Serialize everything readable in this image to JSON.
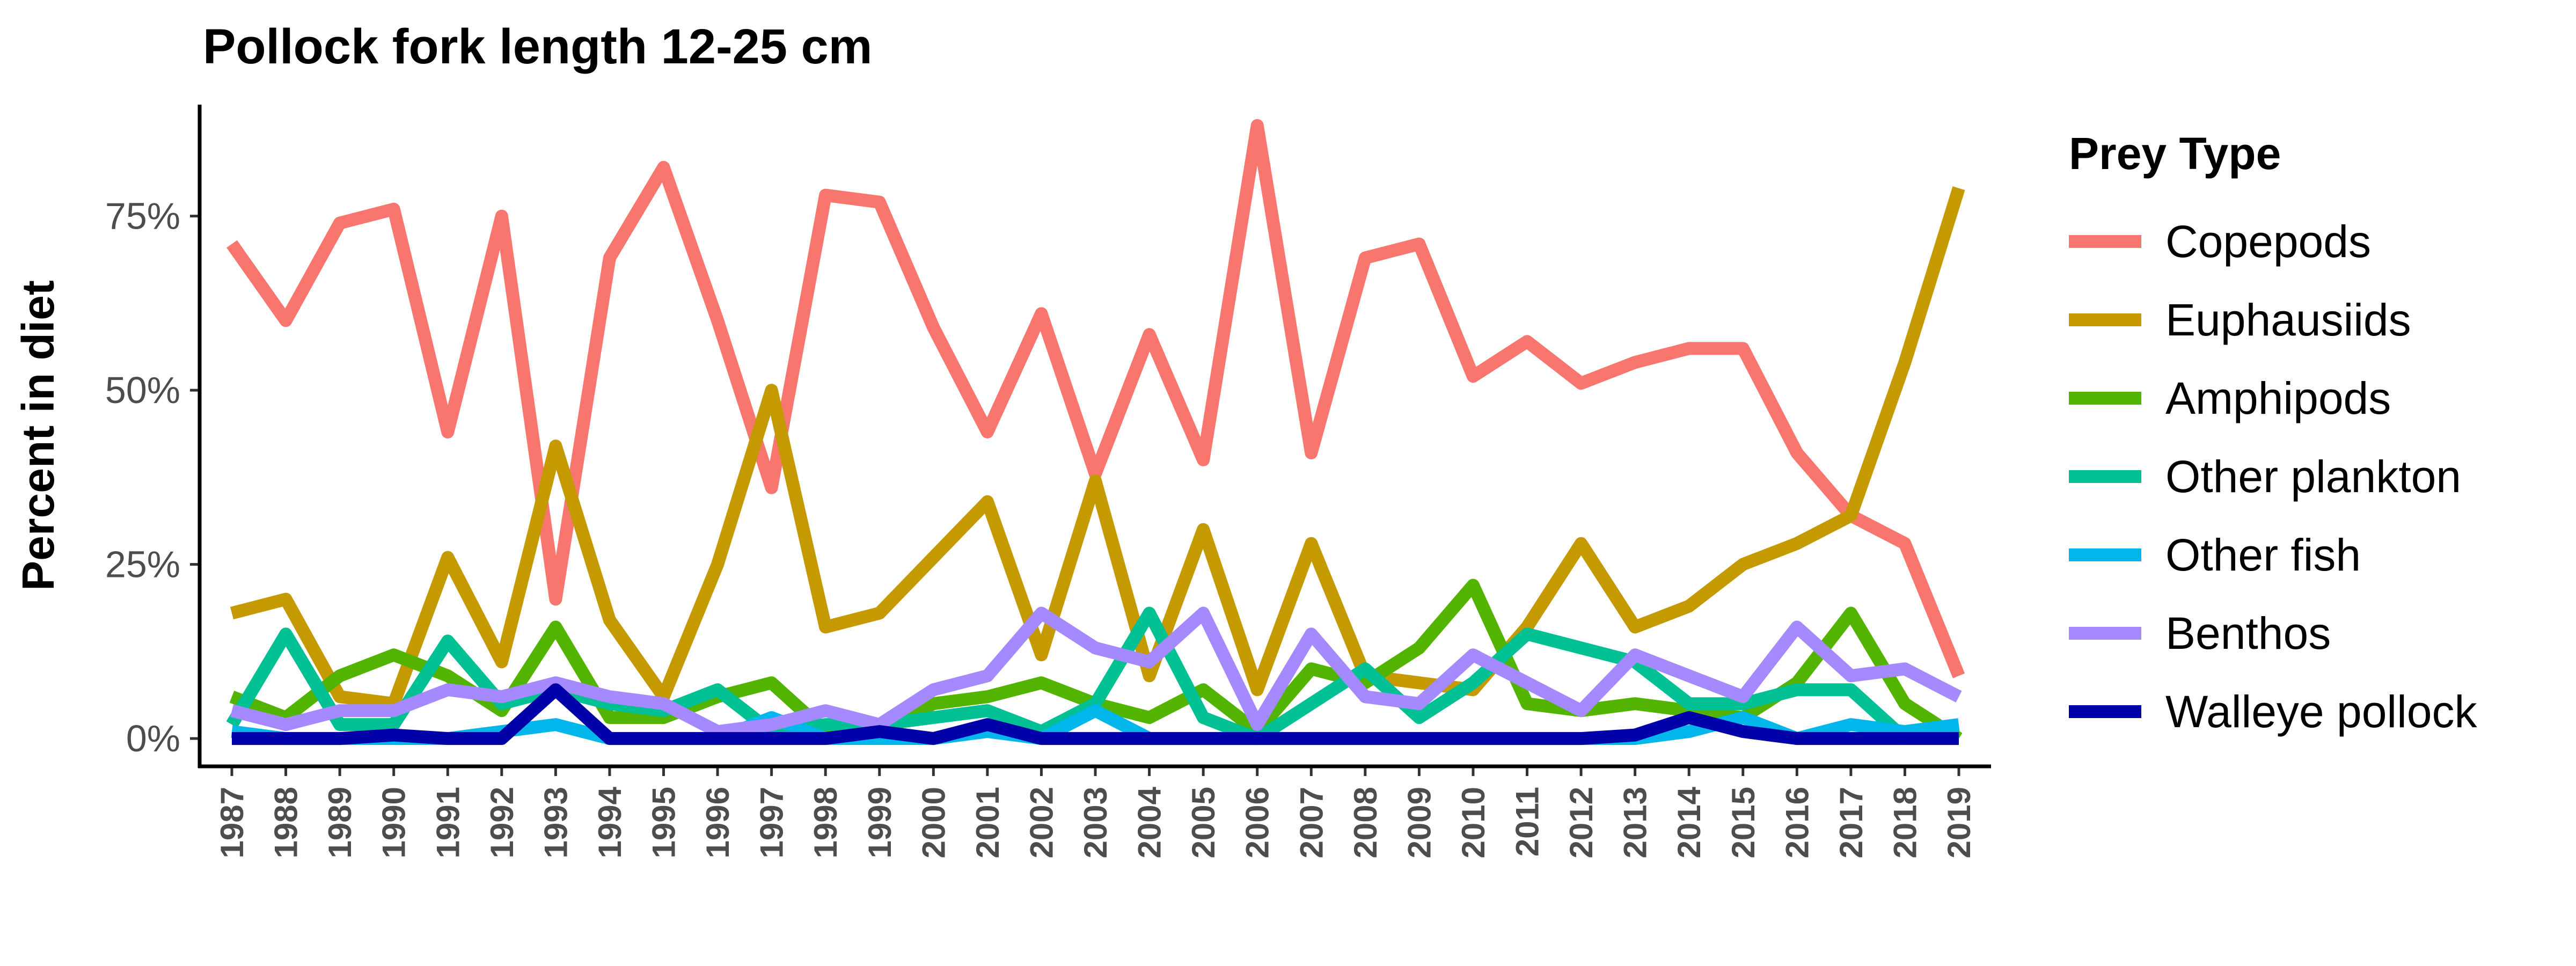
{
  "chart_data": {
    "type": "line",
    "title": "Pollock fork length 12-25 cm",
    "xlabel": "",
    "ylabel": "Percent in diet",
    "x": [
      1987,
      1988,
      1989,
      1990,
      1991,
      1992,
      1993,
      1994,
      1995,
      1996,
      1997,
      1998,
      1999,
      2000,
      2001,
      2002,
      2003,
      2004,
      2005,
      2006,
      2007,
      2008,
      2009,
      2010,
      2011,
      2012,
      2013,
      2014,
      2015,
      2016,
      2017,
      2018,
      2019
    ],
    "x_tick_labels": [
      "1987",
      "1988",
      "1989",
      "1990",
      "1991",
      "1992",
      "1993",
      "1994",
      "1995",
      "1996",
      "1997",
      "1998",
      "1999",
      "2000",
      "2001",
      "2002",
      "2003",
      "2004",
      "2005",
      "2006",
      "2007",
      "2008",
      "2009",
      "2010",
      "2011",
      "2012",
      "2013",
      "2014",
      "2015",
      "2016",
      "2017",
      "2018",
      "2019"
    ],
    "y_ticks": [
      0,
      25,
      50,
      75
    ],
    "y_tick_labels": [
      "0%",
      "25%",
      "50%",
      "75%"
    ],
    "ylim": [
      -4,
      91
    ],
    "grid": false,
    "legend": {
      "title": "Prey Type",
      "placement": "right"
    },
    "series": [
      {
        "name": "Copepods",
        "color": "#F8766D",
        "values": [
          71,
          60,
          74,
          76,
          44,
          75,
          20,
          69,
          82,
          60,
          36,
          78,
          77,
          59,
          44,
          61,
          38,
          58,
          40,
          88,
          41,
          69,
          71,
          52,
          57,
          51,
          54,
          56,
          56,
          41,
          32,
          28,
          9
        ]
      },
      {
        "name": "Euphausiids",
        "color": "#C49A00",
        "values": [
          18,
          20,
          6,
          5,
          26,
          11,
          42,
          17,
          6,
          25,
          50,
          16,
          18,
          26,
          34,
          12,
          37,
          9,
          30,
          7,
          28,
          9,
          8,
          7,
          16,
          28,
          16,
          19,
          25,
          28,
          32,
          54,
          79
        ]
      },
      {
        "name": "Amphipods",
        "color": "#53B400",
        "values": [
          6,
          3,
          9,
          12,
          9,
          4,
          16,
          3,
          3,
          6,
          8,
          1,
          1,
          5,
          6,
          8,
          5,
          3,
          7,
          1,
          10,
          8,
          13,
          22,
          5,
          4,
          5,
          4,
          3,
          8,
          18,
          5,
          0
        ]
      },
      {
        "name": "Other plankton",
        "color": "#00C094",
        "values": [
          2,
          15,
          2,
          2,
          14,
          5,
          7,
          5,
          4,
          7,
          1,
          2,
          2,
          3,
          4,
          1,
          5,
          18,
          3,
          0,
          5,
          10,
          3,
          8,
          15,
          13,
          11,
          5,
          5,
          7,
          7,
          0,
          1
        ]
      },
      {
        "name": "Other fish",
        "color": "#00B6EB",
        "values": [
          1,
          0,
          0,
          0,
          0,
          1,
          2,
          0,
          0,
          0,
          3,
          0,
          0,
          0,
          1,
          0,
          4,
          0,
          0,
          0,
          0,
          0,
          0,
          0,
          0,
          0,
          0,
          1,
          3,
          0,
          2,
          1,
          2
        ]
      },
      {
        "name": "Benthos",
        "color": "#A58AFF",
        "values": [
          4,
          2,
          4,
          4,
          7,
          6,
          8,
          6,
          5,
          1,
          2,
          4,
          2,
          7,
          9,
          18,
          13,
          11,
          18,
          2,
          15,
          6,
          5,
          12,
          8,
          4,
          12,
          9,
          6,
          16,
          9,
          10,
          6
        ]
      },
      {
        "name": "Walleye pollock",
        "color": "#0000A8",
        "values": [
          0,
          0,
          0,
          0.5,
          0,
          0,
          7,
          0,
          0,
          0,
          0,
          0,
          1,
          0,
          2,
          0,
          0,
          0,
          0,
          0,
          0,
          0,
          0,
          0,
          0,
          0,
          0.5,
          3,
          1,
          0,
          0,
          0,
          0
        ]
      }
    ]
  }
}
